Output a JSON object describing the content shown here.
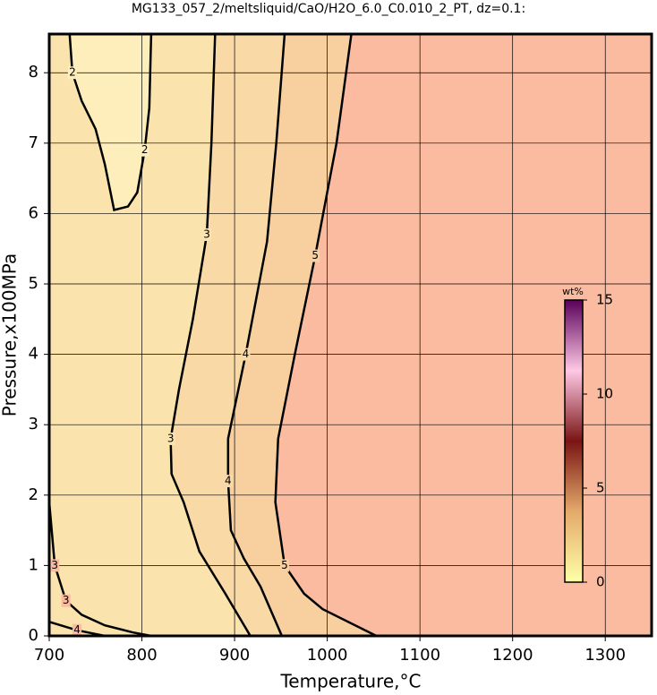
{
  "chart_data": {
    "type": "contour",
    "title": "MG133_057_2/meltsliquid/CaO/H2O_6.0_C0.010_2_PT, dz=0.1:",
    "x_label": "Temperature,°C",
    "y_label": "Pressure,x100MPa",
    "xlim": [
      700,
      1350
    ],
    "ylim": [
      0,
      8.55
    ],
    "xticks": [
      700,
      800,
      900,
      1000,
      1100,
      1200,
      1300
    ],
    "yticks": [
      0,
      1,
      2,
      3,
      4,
      5,
      6,
      7,
      8
    ],
    "grid": true,
    "background_color": "#fbbba0",
    "contours": [
      {
        "level": 5,
        "color": "#000000",
        "fill": "#f8cf9f",
        "x": [
          1026,
          1010,
          987,
          965,
          947,
          944,
          954,
          975,
          995,
          1053
        ],
        "y": [
          8.55,
          7,
          5.4,
          4,
          2.8,
          1.9,
          1.0,
          0.6,
          0.38,
          0
        ]
      },
      {
        "level": 4,
        "color": "#000000",
        "fill": "#f9d9a6",
        "x": [
          954,
          945,
          935,
          912,
          893,
          893,
          896,
          910,
          928,
          951
        ],
        "y": [
          8.55,
          7,
          5.6,
          4,
          2.8,
          2.2,
          1.5,
          1.1,
          0.7,
          0
        ]
      },
      {
        "level": 3,
        "color": "#000000",
        "fill": "#fbe3ad",
        "x": [
          879,
          875,
          870,
          855,
          840,
          831,
          832,
          845,
          862,
          890,
          917
        ],
        "y": [
          8.55,
          7,
          5.7,
          4.5,
          3.5,
          2.8,
          2.3,
          1.9,
          1.2,
          0.6,
          0
        ]
      },
      {
        "level": 2,
        "color": "#000000",
        "fill": "#fdeebb",
        "x": [
          722,
          725,
          735,
          750,
          760,
          770,
          785,
          795,
          803,
          808,
          810
        ],
        "y": [
          8.55,
          8.0,
          7.6,
          7.2,
          6.7,
          6.05,
          6.1,
          6.3,
          6.9,
          7.5,
          8.55
        ]
      },
      {
        "level": 3,
        "color": "#000000",
        "x": [
          700,
          706,
          718,
          735,
          760,
          790,
          810
        ],
        "y": [
          1.9,
          1.0,
          0.5,
          0.3,
          0.15,
          0.05,
          0
        ]
      },
      {
        "level": 4,
        "color": "#000000",
        "x": [
          700,
          730,
          760
        ],
        "y": [
          0.2,
          0.08,
          0
        ]
      }
    ],
    "colorbar": {
      "label": "wt%",
      "lim": [
        0,
        15
      ],
      "ticks": [
        0,
        5,
        10,
        15
      ],
      "colors": [
        "#ffffa8",
        "#e4aa6a",
        "#7a1414",
        "#ffc8e4",
        "#5a005a"
      ]
    }
  }
}
